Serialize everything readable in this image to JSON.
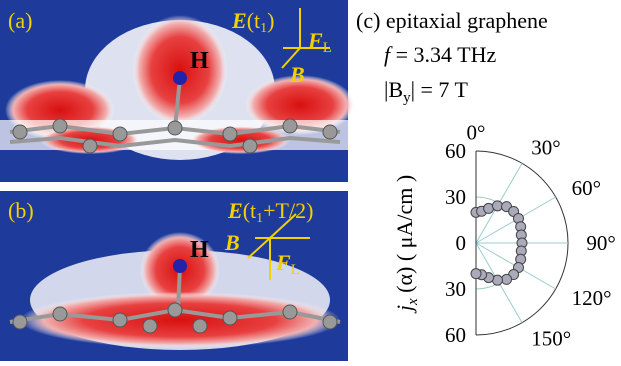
{
  "panel_a": {
    "label": "(a)",
    "atom": "H",
    "field": [
      "E",
      "(t",
      "1",
      ")"
    ],
    "force": [
      "F",
      "L"
    ],
    "b_field": "B"
  },
  "panel_b": {
    "label": "(b)",
    "atom": "H",
    "field": [
      "E",
      "(t",
      "1",
      "+T/2)"
    ],
    "force": [
      "F",
      "L"
    ],
    "b_field": "B"
  },
  "panel_c": {
    "label": "(c) epitaxial graphene",
    "frequency": [
      "f",
      " = 3.34 THz"
    ],
    "magnetic": [
      "|B",
      "y",
      "| = 7 T"
    ],
    "y_label": [
      "j",
      "x",
      " (α) ( μA/cm )"
    ],
    "rlim": [
      0,
      60
    ],
    "rticks": [
      {
        "value": 60,
        "label": "60"
      },
      {
        "value": 30,
        "label": "30"
      },
      {
        "value": 0,
        "label": "0"
      },
      {
        "value": -30,
        "label": "30"
      },
      {
        "value": -60,
        "label": "60"
      }
    ],
    "angle_ticks": [
      {
        "value": 0,
        "label": "0°"
      },
      {
        "value": 30,
        "label": "30°"
      },
      {
        "value": 60,
        "label": "60°"
      },
      {
        "value": 90,
        "label": "90°"
      },
      {
        "value": 120,
        "label": "120°"
      },
      {
        "value": 150,
        "label": "150°"
      }
    ],
    "angle": [
      0,
      10,
      20,
      30,
      40,
      50,
      60,
      70,
      80,
      90,
      100,
      110,
      120,
      130,
      140,
      150,
      160,
      170,
      180
    ],
    "r": [
      20,
      21,
      24,
      28,
      31,
      32,
      32,
      31,
      30,
      30,
      30,
      31,
      32,
      32,
      31,
      28,
      24,
      21,
      20
    ]
  }
}
